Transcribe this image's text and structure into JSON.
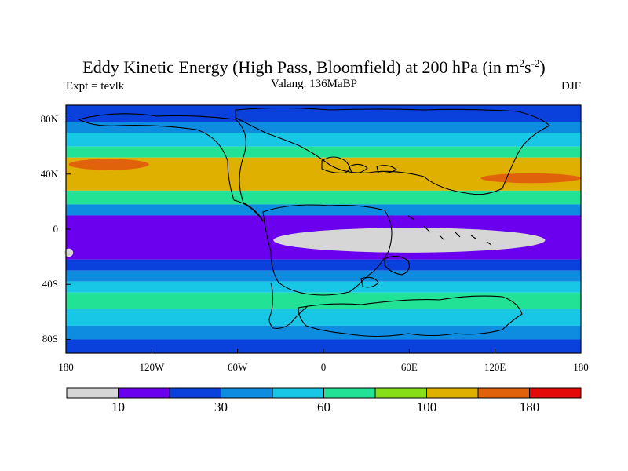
{
  "title": {
    "main": "Eddy Kinetic Energy (High Pass, Bloomfield) at 200 hPa (in m",
    "sup1": "2",
    "mid": "s",
    "sup2": "-2",
    "close": ")"
  },
  "left_label": "Expt = tevlk",
  "center_label": "Valang. 136MaBP",
  "right_label": "DJF",
  "lat_labels": [
    "80N",
    "40N",
    "0",
    "40S",
    "80S"
  ],
  "lon_labels": [
    "180",
    "120W",
    "60W",
    "0",
    "60E",
    "120E",
    "180"
  ],
  "colorbar": {
    "labels": [
      "10",
      "30",
      "60",
      "100",
      "180"
    ],
    "colors": [
      "#d6d6d6",
      "#6a00ee",
      "#0a40dc",
      "#0e8ce0",
      "#18c6e6",
      "#22e296",
      "#86de18",
      "#e0b000",
      "#e0620a",
      "#e40a0a"
    ]
  },
  "chart_data": {
    "type": "heatmap",
    "title": "Eddy Kinetic Energy (High Pass, Bloomfield) at 200 hPa (in m2s-2)",
    "units": "m2 s-2",
    "level": "200 hPa",
    "season": "DJF",
    "experiment": "tevlk",
    "period": "Valang. 136MaBP",
    "xrange": [
      -180,
      180
    ],
    "yrange": [
      -90,
      90
    ],
    "contour_levels": [
      10,
      20,
      30,
      45,
      60,
      80,
      100,
      140,
      180
    ],
    "zonal_bands": [
      {
        "lat_from": 90,
        "lat_to": 78,
        "level": 2
      },
      {
        "lat_from": 78,
        "lat_to": 70,
        "level": 3
      },
      {
        "lat_from": 70,
        "lat_to": 60,
        "level": 4
      },
      {
        "lat_from": 60,
        "lat_to": 52,
        "level": 5
      },
      {
        "lat_from": 52,
        "lat_to": 28,
        "level": 7
      },
      {
        "lat_from": 28,
        "lat_to": 18,
        "level": 5
      },
      {
        "lat_from": 18,
        "lat_to": 10,
        "level": 3
      },
      {
        "lat_from": 10,
        "lat_to": -22,
        "level": 1
      },
      {
        "lat_from": -22,
        "lat_to": -30,
        "level": 2
      },
      {
        "lat_from": -30,
        "lat_to": -38,
        "level": 3
      },
      {
        "lat_from": -38,
        "lat_to": -46,
        "level": 4
      },
      {
        "lat_from": -46,
        "lat_to": -58,
        "level": 5
      },
      {
        "lat_from": -58,
        "lat_to": -70,
        "level": 4
      },
      {
        "lat_from": -70,
        "lat_to": -80,
        "level": 3
      },
      {
        "lat_from": -80,
        "lat_to": -90,
        "level": 2
      }
    ],
    "maxima": [
      {
        "lon_center": -150,
        "lat_center": 47,
        "lon_halfwidth": 28,
        "lat_halfwidth": 4,
        "level": 8
      },
      {
        "lon_center": 145,
        "lat_center": 37,
        "lon_halfwidth": 35,
        "lat_halfwidth": 3.5,
        "level": 8
      }
    ],
    "minima": [
      {
        "lon_center": 60,
        "lat_center": -8,
        "lon_halfwidth": 95,
        "lat_halfwidth": 9,
        "level": 0
      },
      {
        "lon_center": -178,
        "lat_center": -17,
        "lon_halfwidth": 3,
        "lat_halfwidth": 3,
        "level": 0
      }
    ]
  }
}
